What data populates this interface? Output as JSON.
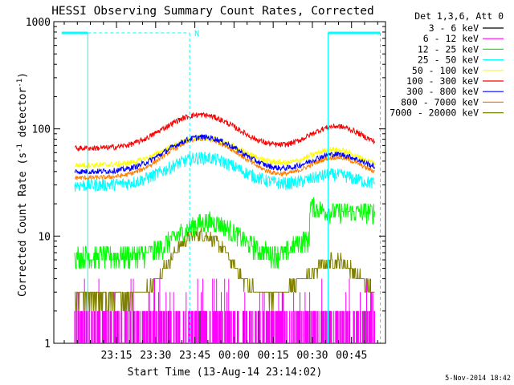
{
  "chart_data": {
    "type": "line",
    "title": "HESSI Observing Summary Count Rates, Corrected",
    "xlabel": "Start Time (13-Aug-14 23:14:02)",
    "ylabel": "Corrected Count Rate (s⁻¹ detector⁻¹)",
    "ylabel_plain": "Corrected Count Rate (s",
    "ylabel_mid": " detector",
    "ylabel_end": ")",
    "ylabel_sup": "-1",
    "yscale": "log",
    "ylim": [
      1,
      1000
    ],
    "xlim_minutes": [
      -24,
      103
    ],
    "x_tick_labels": [
      "23:15",
      "23:30",
      "23:45",
      "00:00",
      "00:15",
      "00:30",
      "00:45"
    ],
    "x_tick_minutes": [
      0,
      15,
      30,
      45,
      60,
      75,
      90
    ],
    "y_tick_labels": [
      "1",
      "10",
      "100",
      "1000"
    ],
    "y_tick_values": [
      1,
      10,
      100,
      1000
    ],
    "legend_title": "Det 1,3,6, Att 0",
    "legend_position": "top-right",
    "attenuator_label": "N",
    "footer_date": "5-Nov-2014 18:42",
    "series": [
      {
        "name": "3 - 6 keV",
        "color": "#000000",
        "base": 1.0
      },
      {
        "name": "6 - 12 keV",
        "color": "#ff00ff",
        "base": 1.6
      },
      {
        "name": "12 - 25 keV",
        "color": "#00ff00",
        "base": 6.5
      },
      {
        "name": "25 - 50 keV",
        "color": "#00ffff",
        "base": 30
      },
      {
        "name": "50 - 100 keV",
        "color": "#ffff00",
        "base": 46
      },
      {
        "name": "100 - 300 keV",
        "color": "#ff0000",
        "base": 66
      },
      {
        "name": "300 - 800 keV",
        "color": "#0000ff",
        "base": 40
      },
      {
        "name": "800 - 7000 keV",
        "color": "#ff8000",
        "base": 35
      },
      {
        "name": "7000 - 20000 keV",
        "color": "#808000",
        "base": 2.6
      }
    ],
    "time_range_minutes": [
      -16,
      99
    ]
  }
}
